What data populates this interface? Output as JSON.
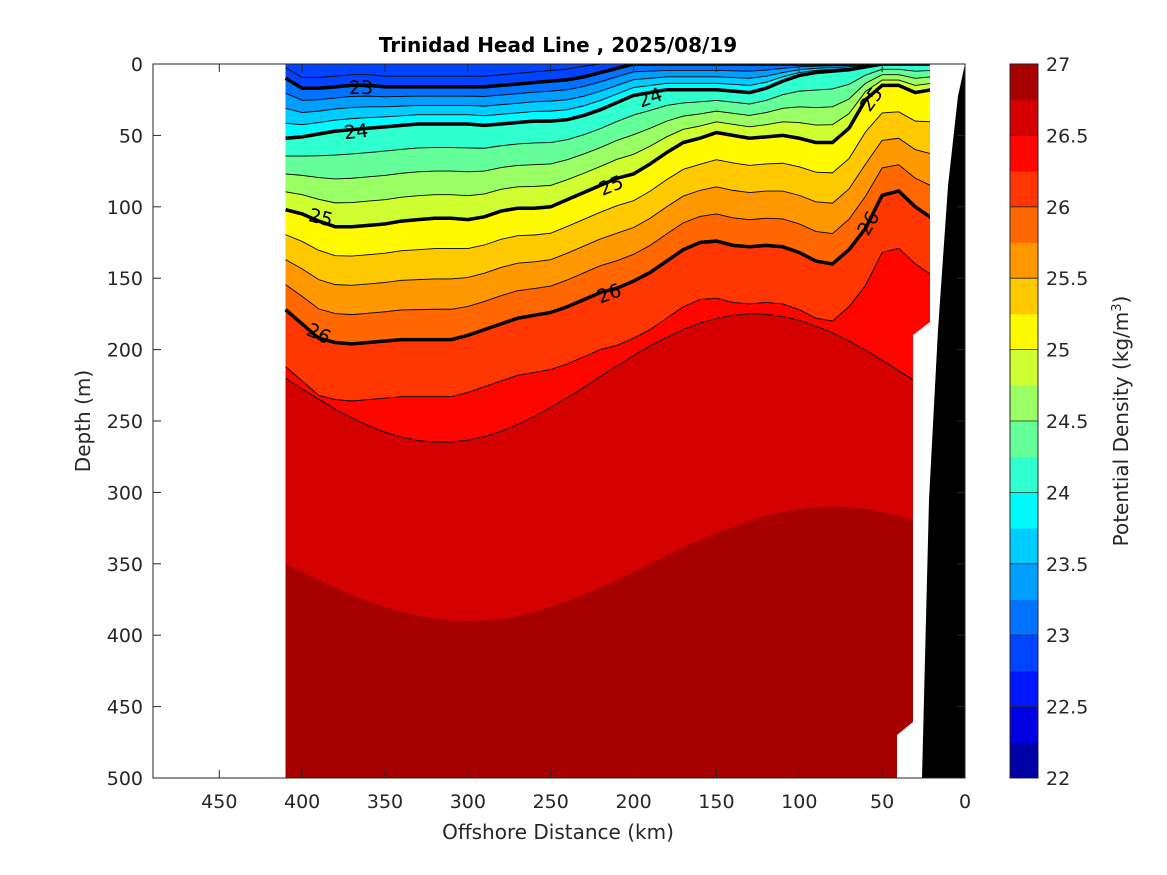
{
  "chart_data": {
    "type": "contour",
    "title": "Trinidad Head Line , 2025/08/19",
    "xlabel": "Offshore Distance (km)",
    "ylabel": "Depth (m)",
    "colorbar_label": "Potential Density (kg/m",
    "colorbar_label_sup": "3",
    "colorbar_label_close": ")",
    "xlim": [
      490,
      0
    ],
    "ylim": [
      500,
      0
    ],
    "x_ticks": [
      450,
      400,
      350,
      300,
      250,
      200,
      150,
      100,
      50,
      0
    ],
    "y_ticks": [
      0,
      50,
      100,
      150,
      200,
      250,
      300,
      350,
      400,
      450,
      500
    ],
    "colorbar_ticks": [
      22,
      22.5,
      23,
      23.5,
      24,
      24.5,
      25,
      25.5,
      26,
      26.5,
      27
    ],
    "colorbar_range": [
      22,
      27
    ],
    "level_step": 0.25,
    "grid": false,
    "colormap": "jet",
    "colormap_colors": [
      "#000080",
      "#0000ff",
      "#00ffff",
      "#ffff00",
      "#ff0000",
      "#800000"
    ],
    "data_x_range": [
      410,
      20
    ],
    "x": [
      410,
      400,
      390,
      380,
      370,
      360,
      350,
      340,
      330,
      320,
      310,
      300,
      290,
      280,
      270,
      260,
      250,
      240,
      230,
      220,
      210,
      200,
      190,
      180,
      170,
      160,
      150,
      140,
      130,
      120,
      110,
      100,
      90,
      80,
      70,
      60,
      50,
      40,
      30,
      20
    ],
    "isopycnals": [
      {
        "level": 23,
        "depth": [
          10,
          17,
          17,
          16,
          15,
          15,
          16,
          16,
          16,
          16,
          16,
          16,
          16,
          15,
          14,
          13,
          12,
          11,
          9,
          6,
          3,
          0,
          0,
          0,
          0,
          0,
          0,
          0,
          0,
          0,
          0,
          0,
          0,
          0,
          0,
          0,
          0,
          0,
          0,
          0
        ]
      },
      {
        "level": 24,
        "depth": [
          52,
          51,
          49,
          47,
          46,
          45,
          44,
          43,
          42,
          42,
          42,
          42,
          43,
          42,
          41,
          40,
          40,
          39,
          36,
          32,
          27,
          22,
          20,
          18,
          18,
          18,
          18,
          19,
          20,
          17,
          12,
          8,
          6,
          5,
          4,
          2,
          0,
          0,
          0,
          0
        ]
      },
      {
        "level": 25,
        "depth": [
          102,
          105,
          110,
          114,
          114,
          113,
          112,
          110,
          109,
          108,
          108,
          109,
          107,
          103,
          101,
          101,
          100,
          95,
          90,
          85,
          80,
          77,
          70,
          62,
          55,
          52,
          48,
          50,
          52,
          51,
          50,
          52,
          55,
          55,
          45,
          25,
          15,
          15,
          20,
          18
        ]
      },
      {
        "level": 26,
        "depth": [
          172,
          182,
          192,
          195,
          196,
          195,
          194,
          193,
          193,
          193,
          193,
          190,
          186,
          182,
          178,
          176,
          174,
          170,
          165,
          160,
          157,
          152,
          146,
          138,
          130,
          125,
          124,
          127,
          128,
          127,
          128,
          132,
          138,
          140,
          130,
          115,
          92,
          89,
          100,
          108
        ]
      }
    ],
    "contour_labels": [
      "23",
      "24",
      "24",
      "25",
      "25",
      "25",
      "26",
      "26",
      "26"
    ]
  }
}
